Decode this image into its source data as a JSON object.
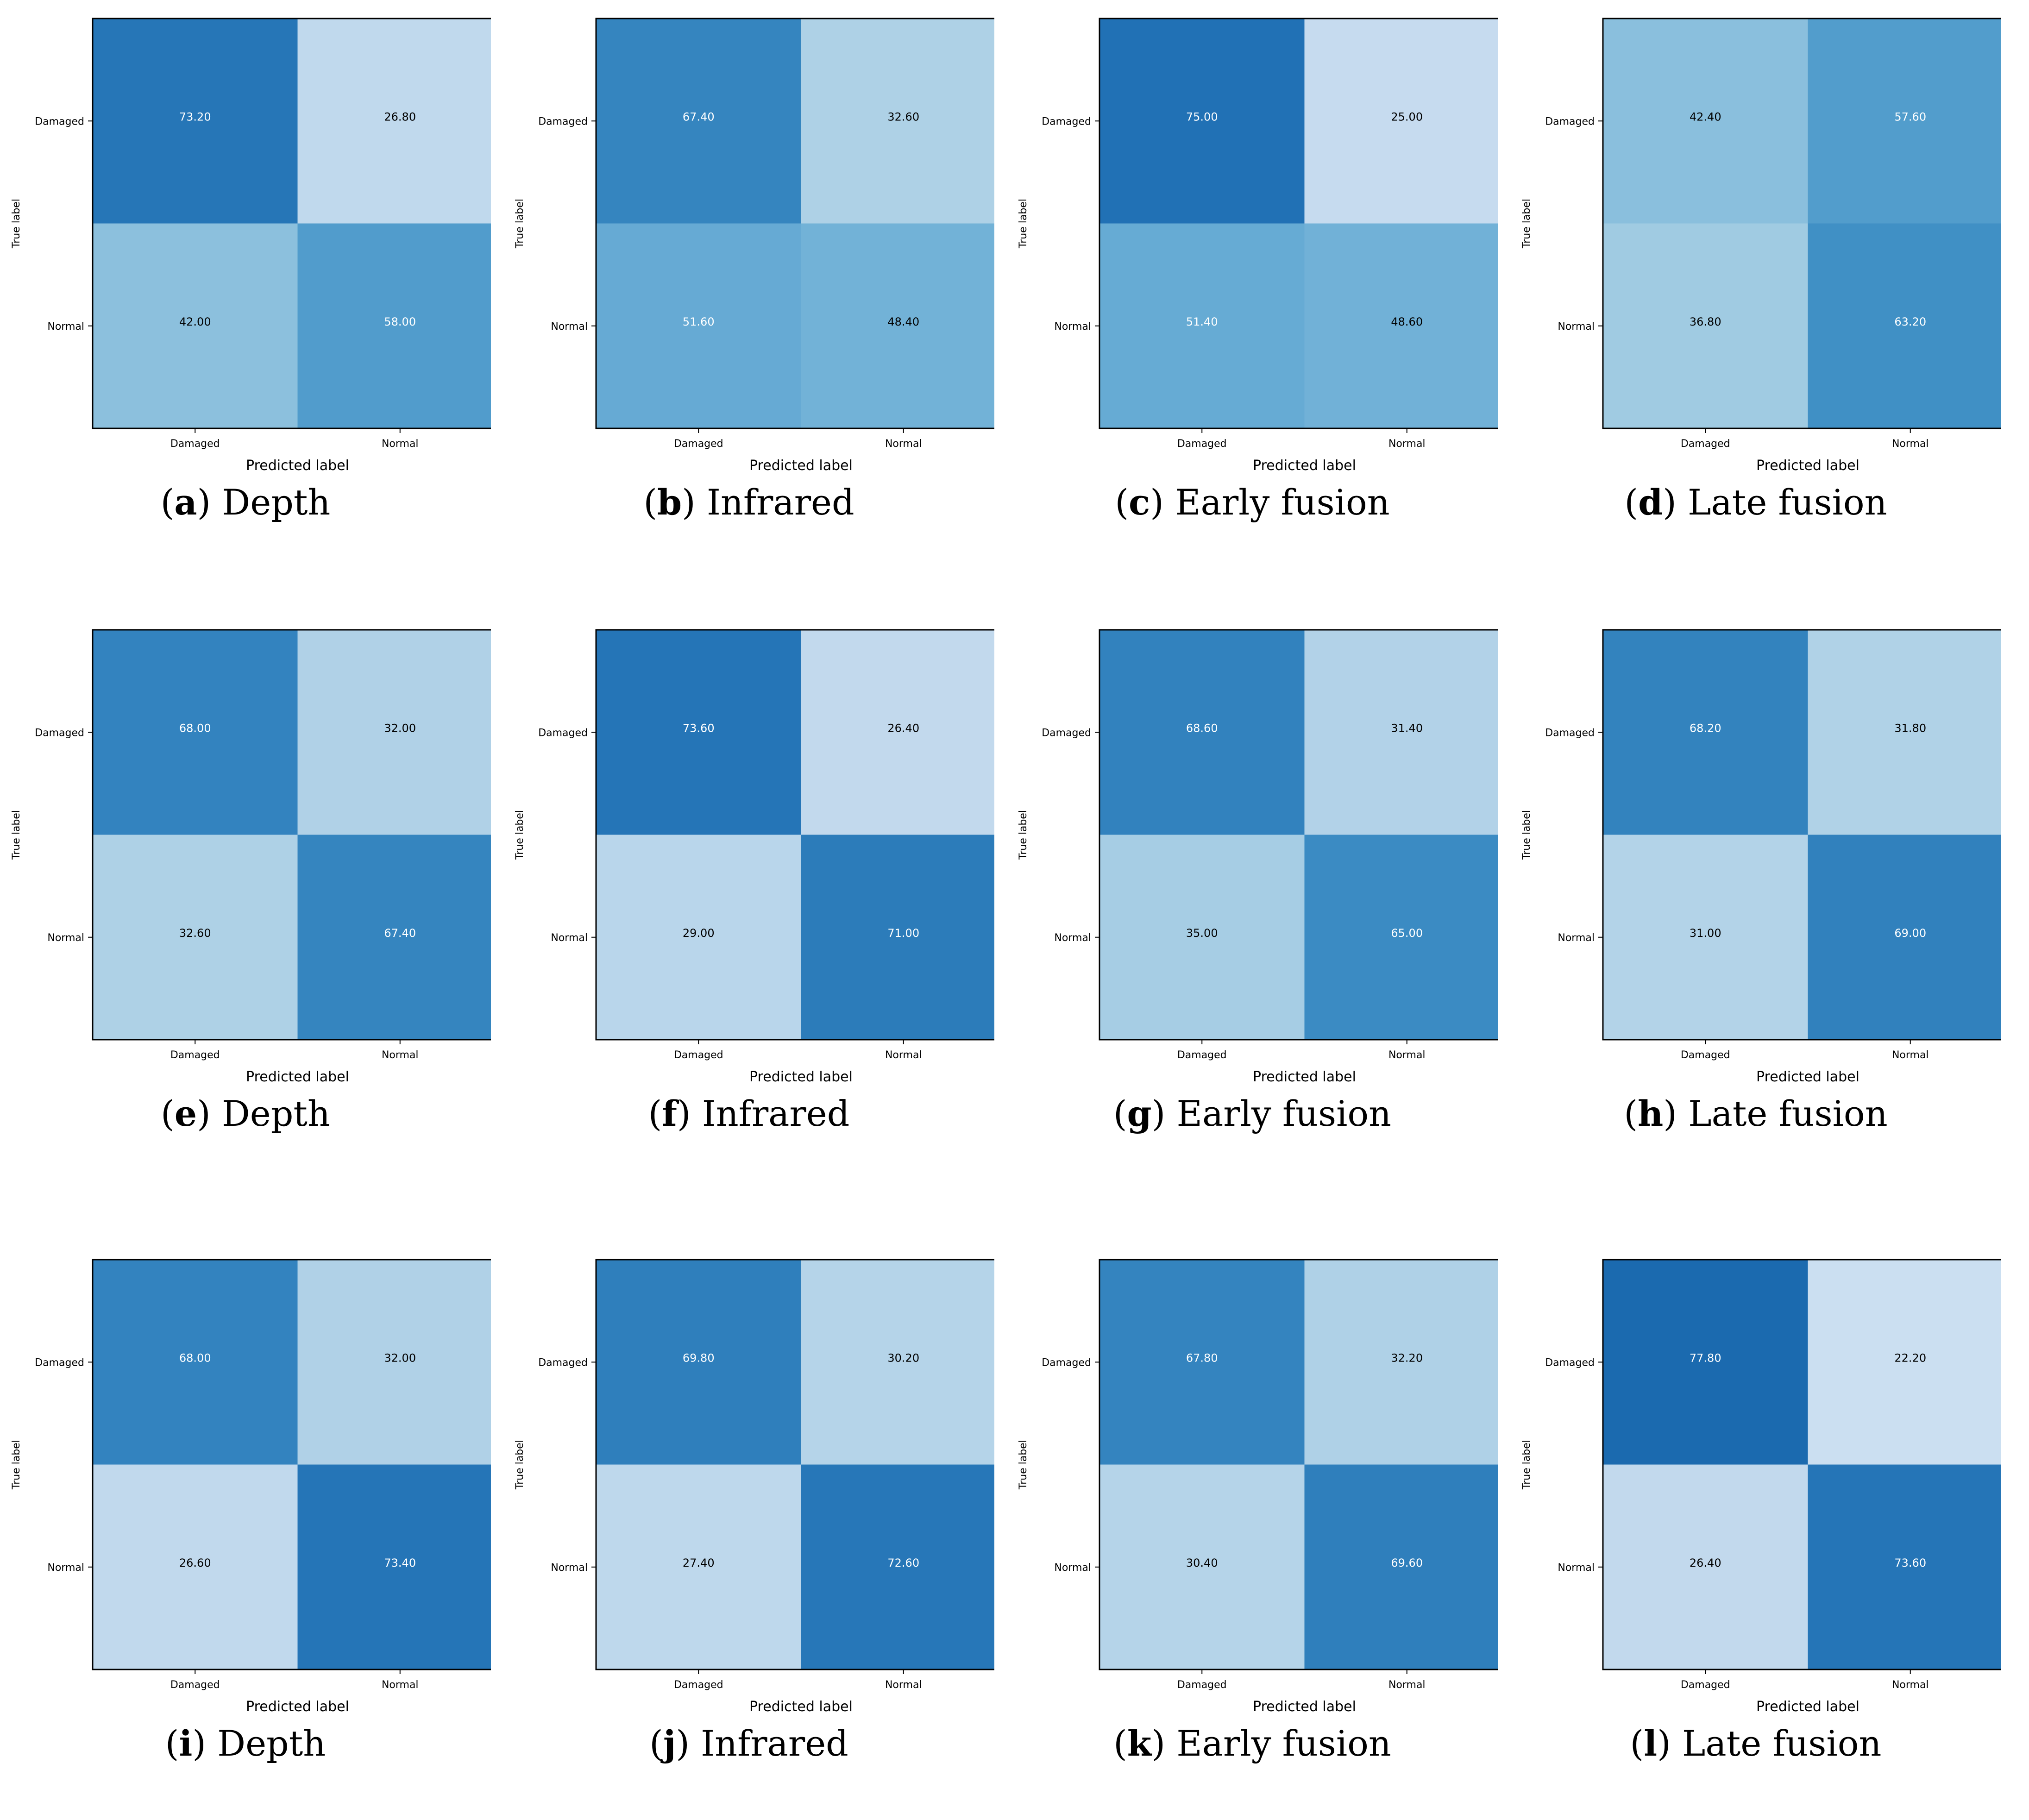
{
  "chart_data": [
    {
      "type": "heatmap",
      "panel": "a",
      "caption": "Depth",
      "values": [
        [
          73.2,
          26.8
        ],
        [
          42.0,
          58.0
        ]
      ],
      "value_labels": [
        [
          "73.20",
          "26.80"
        ],
        [
          "42.00",
          "58.00"
        ]
      ],
      "x_categories": [
        "Damaged",
        "Normal"
      ],
      "y_categories": [
        "Damaged",
        "Normal"
      ],
      "xlabel": "Predicted label",
      "ylabel": "True label",
      "colormap": "Blues",
      "vmin": 0,
      "vmax": 100
    },
    {
      "type": "heatmap",
      "panel": "b",
      "caption": "Infrared",
      "values": [
        [
          67.4,
          32.6
        ],
        [
          51.6,
          48.4
        ]
      ],
      "value_labels": [
        [
          "67.40",
          "32.60"
        ],
        [
          "51.60",
          "48.40"
        ]
      ],
      "x_categories": [
        "Damaged",
        "Normal"
      ],
      "y_categories": [
        "Damaged",
        "Normal"
      ],
      "xlabel": "Predicted label",
      "ylabel": "True label",
      "colormap": "Blues",
      "vmin": 0,
      "vmax": 100
    },
    {
      "type": "heatmap",
      "panel": "c",
      "caption": "Early fusion",
      "values": [
        [
          75.0,
          25.0
        ],
        [
          51.4,
          48.6
        ]
      ],
      "value_labels": [
        [
          "75.00",
          "25.00"
        ],
        [
          "51.40",
          "48.60"
        ]
      ],
      "x_categories": [
        "Damaged",
        "Normal"
      ],
      "y_categories": [
        "Damaged",
        "Normal"
      ],
      "xlabel": "Predicted label",
      "ylabel": "True label",
      "colormap": "Blues",
      "vmin": 0,
      "vmax": 100
    },
    {
      "type": "heatmap",
      "panel": "d",
      "caption": "Late fusion",
      "values": [
        [
          42.4,
          57.6
        ],
        [
          36.8,
          63.2
        ]
      ],
      "value_labels": [
        [
          "42.40",
          "57.60"
        ],
        [
          "36.80",
          "63.20"
        ]
      ],
      "x_categories": [
        "Damaged",
        "Normal"
      ],
      "y_categories": [
        "Damaged",
        "Normal"
      ],
      "xlabel": "Predicted label",
      "ylabel": "True label",
      "colormap": "Blues",
      "vmin": 0,
      "vmax": 100
    },
    {
      "type": "heatmap",
      "panel": "e",
      "caption": "Depth",
      "values": [
        [
          68.0,
          32.0
        ],
        [
          32.6,
          67.4
        ]
      ],
      "value_labels": [
        [
          "68.00",
          "32.00"
        ],
        [
          "32.60",
          "67.40"
        ]
      ],
      "x_categories": [
        "Damaged",
        "Normal"
      ],
      "y_categories": [
        "Damaged",
        "Normal"
      ],
      "xlabel": "Predicted label",
      "ylabel": "True label",
      "colormap": "Blues",
      "vmin": 0,
      "vmax": 100
    },
    {
      "type": "heatmap",
      "panel": "f",
      "caption": "Infrared",
      "values": [
        [
          73.6,
          26.4
        ],
        [
          29.0,
          71.0
        ]
      ],
      "value_labels": [
        [
          "73.60",
          "26.40"
        ],
        [
          "29.00",
          "71.00"
        ]
      ],
      "x_categories": [
        "Damaged",
        "Normal"
      ],
      "y_categories": [
        "Damaged",
        "Normal"
      ],
      "xlabel": "Predicted label",
      "ylabel": "True label",
      "colormap": "Blues",
      "vmin": 0,
      "vmax": 100
    },
    {
      "type": "heatmap",
      "panel": "g",
      "caption": "Early fusion",
      "values": [
        [
          68.6,
          31.4
        ],
        [
          35.0,
          65.0
        ]
      ],
      "value_labels": [
        [
          "68.60",
          "31.40"
        ],
        [
          "35.00",
          "65.00"
        ]
      ],
      "x_categories": [
        "Damaged",
        "Normal"
      ],
      "y_categories": [
        "Damaged",
        "Normal"
      ],
      "xlabel": "Predicted label",
      "ylabel": "True label",
      "colormap": "Blues",
      "vmin": 0,
      "vmax": 100
    },
    {
      "type": "heatmap",
      "panel": "h",
      "caption": "Late fusion",
      "values": [
        [
          68.2,
          31.8
        ],
        [
          31.0,
          69.0
        ]
      ],
      "value_labels": [
        [
          "68.20",
          "31.80"
        ],
        [
          "31.00",
          "69.00"
        ]
      ],
      "x_categories": [
        "Damaged",
        "Normal"
      ],
      "y_categories": [
        "Damaged",
        "Normal"
      ],
      "xlabel": "Predicted label",
      "ylabel": "True label",
      "colormap": "Blues",
      "vmin": 0,
      "vmax": 100
    },
    {
      "type": "heatmap",
      "panel": "i",
      "caption": "Depth",
      "values": [
        [
          68.0,
          32.0
        ],
        [
          26.6,
          73.4
        ]
      ],
      "value_labels": [
        [
          "68.00",
          "32.00"
        ],
        [
          "26.60",
          "73.40"
        ]
      ],
      "x_categories": [
        "Damaged",
        "Normal"
      ],
      "y_categories": [
        "Damaged",
        "Normal"
      ],
      "xlabel": "Predicted label",
      "ylabel": "True label",
      "colormap": "Blues",
      "vmin": 0,
      "vmax": 100
    },
    {
      "type": "heatmap",
      "panel": "j",
      "caption": "Infrared",
      "values": [
        [
          69.8,
          30.2
        ],
        [
          27.4,
          72.6
        ]
      ],
      "value_labels": [
        [
          "69.80",
          "30.20"
        ],
        [
          "27.40",
          "72.60"
        ]
      ],
      "x_categories": [
        "Damaged",
        "Normal"
      ],
      "y_categories": [
        "Damaged",
        "Normal"
      ],
      "xlabel": "Predicted label",
      "ylabel": "True label",
      "colormap": "Blues",
      "vmin": 0,
      "vmax": 100
    },
    {
      "type": "heatmap",
      "panel": "k",
      "caption": "Early fusion",
      "values": [
        [
          67.8,
          32.2
        ],
        [
          30.4,
          69.6
        ]
      ],
      "value_labels": [
        [
          "67.80",
          "32.20"
        ],
        [
          "30.40",
          "69.60"
        ]
      ],
      "x_categories": [
        "Damaged",
        "Normal"
      ],
      "y_categories": [
        "Damaged",
        "Normal"
      ],
      "xlabel": "Predicted label",
      "ylabel": "True label",
      "colormap": "Blues",
      "vmin": 0,
      "vmax": 100
    },
    {
      "type": "heatmap",
      "panel": "l",
      "caption": "Late fusion",
      "values": [
        [
          77.8,
          22.2
        ],
        [
          26.4,
          73.6
        ]
      ],
      "value_labels": [
        [
          "77.80",
          "22.20"
        ],
        [
          "26.40",
          "73.60"
        ]
      ],
      "x_categories": [
        "Damaged",
        "Normal"
      ],
      "y_categories": [
        "Damaged",
        "Normal"
      ],
      "xlabel": "Predicted label",
      "ylabel": "True label",
      "colormap": "Blues",
      "vmin": 0,
      "vmax": 100
    }
  ],
  "colors": {
    "frame": "#000000",
    "dark_text": "#000000",
    "light_text": "#ffffff",
    "blues_scale": [
      "#f7fbff",
      "#deebf7",
      "#c6dbef",
      "#9ecae1",
      "#6baed6",
      "#4292c6",
      "#2171b5",
      "#08519c",
      "#08306b"
    ]
  }
}
